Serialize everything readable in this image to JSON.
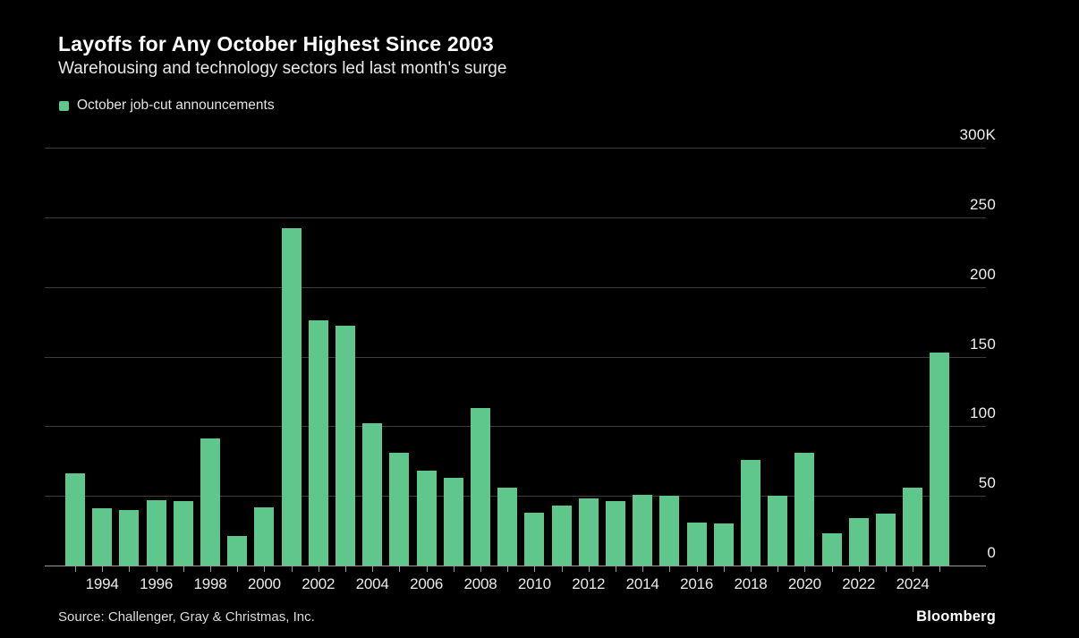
{
  "header": {
    "title": "Layoffs for Any October Highest Since 2003",
    "subtitle": "Warehousing and technology sectors led last month's surge"
  },
  "legend": {
    "label": "October job-cut announcements",
    "swatch_color": "#5fc78c"
  },
  "chart_data": {
    "type": "bar",
    "title": "Layoffs for Any October Highest Since 2003",
    "subtitle": "Warehousing and technology sectors led last month's surge",
    "series_name": "October job-cut announcements",
    "unit": "thousands of announced job cuts",
    "categories": [
      1993,
      1994,
      1995,
      1996,
      1997,
      1998,
      1999,
      2000,
      2001,
      2002,
      2003,
      2004,
      2005,
      2006,
      2007,
      2008,
      2009,
      2010,
      2011,
      2012,
      2013,
      2014,
      2015,
      2016,
      2017,
      2018,
      2019,
      2020,
      2021,
      2022,
      2023,
      2024,
      2025
    ],
    "values": [
      66,
      41,
      40,
      47,
      46,
      91,
      21,
      42,
      242,
      176,
      172,
      102,
      81,
      68,
      63,
      113,
      56,
      38,
      43,
      48,
      46,
      51,
      50,
      31,
      30,
      76,
      50,
      81,
      23,
      34,
      37,
      56,
      153
    ],
    "xlabel": "",
    "ylabel": "",
    "ylim": [
      0,
      300
    ],
    "y_tick_values": [
      0,
      50,
      100,
      150,
      200,
      250,
      300
    ],
    "y_tick_labels": [
      "0",
      "50",
      "100",
      "150",
      "200",
      "250",
      "300K"
    ],
    "x_tick_labels": [
      "1994",
      "1996",
      "1998",
      "2000",
      "2002",
      "2004",
      "2006",
      "2008",
      "2010",
      "2012",
      "2014",
      "2016",
      "2018",
      "2020",
      "2022",
      "2024"
    ],
    "grid": true,
    "legend_position": "top-left",
    "bar_color": "#5fc78c",
    "background_color": "#000000"
  },
  "footer": {
    "source": "Source: Challenger, Gray & Christmas, Inc.",
    "brand": "Bloomberg"
  }
}
